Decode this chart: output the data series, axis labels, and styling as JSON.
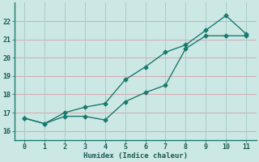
{
  "line1_x": [
    0,
    1,
    2,
    3,
    4,
    5,
    6,
    7,
    8,
    9,
    10,
    11
  ],
  "line1_y": [
    16.7,
    16.4,
    16.8,
    16.8,
    16.6,
    17.6,
    18.1,
    18.5,
    20.5,
    21.2,
    21.2,
    21.2
  ],
  "line2_x": [
    0,
    1,
    2,
    3,
    4,
    5,
    6,
    7,
    8,
    9,
    10,
    11
  ],
  "line2_y": [
    16.7,
    16.4,
    17.0,
    17.3,
    17.5,
    18.8,
    19.5,
    20.3,
    20.7,
    21.5,
    22.3,
    21.3
  ],
  "line_color": "#1a7a6e",
  "bg_color": "#cce8e4",
  "grid_h_color": "#d4a8b0",
  "grid_v_color": "#a8ccc8",
  "xlabel": "Humidex (Indice chaleur)",
  "ylim": [
    15.5,
    23.0
  ],
  "xlim": [
    -0.5,
    11.5
  ],
  "yticks": [
    16,
    17,
    18,
    19,
    20,
    21,
    22
  ],
  "xticks": [
    0,
    1,
    2,
    3,
    4,
    5,
    6,
    7,
    8,
    9,
    10,
    11
  ],
  "font_color": "#1a5a50",
  "marker": "D",
  "markersize": 2.5,
  "linewidth": 1.0
}
